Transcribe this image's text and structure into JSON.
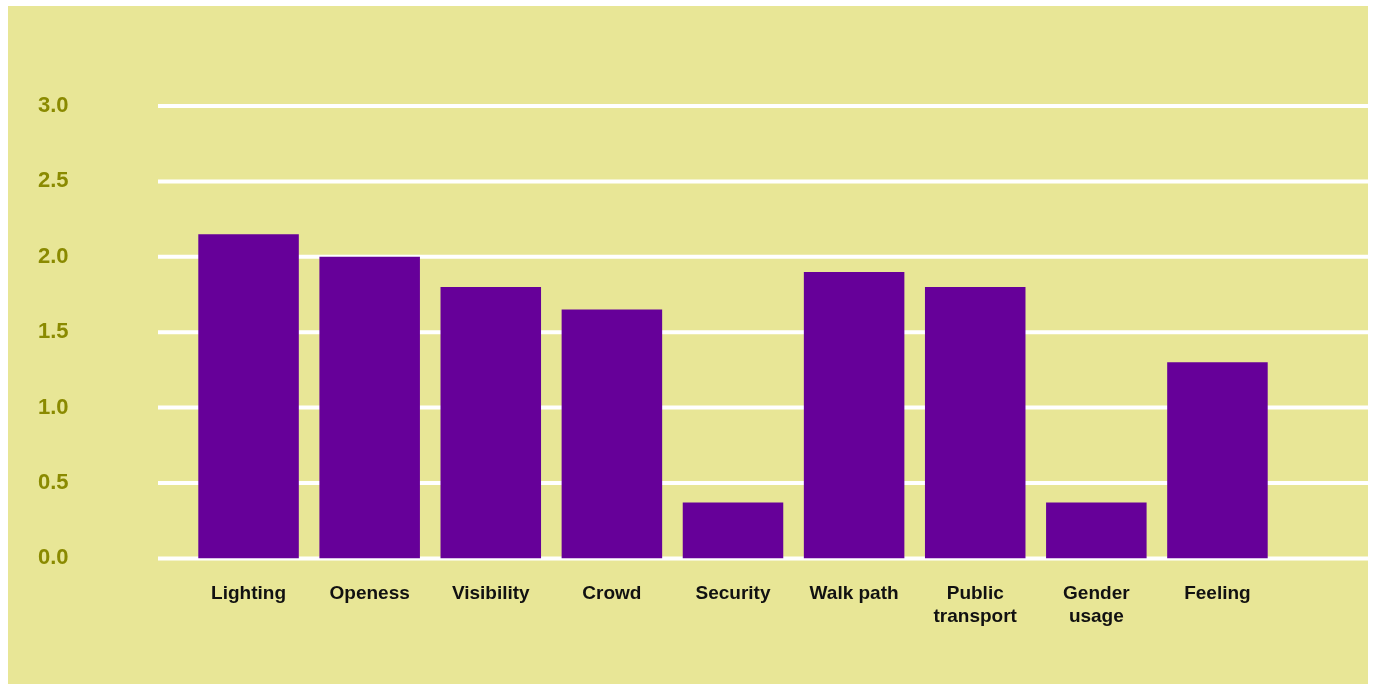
{
  "chart_data": {
    "type": "bar",
    "categories": [
      "Lighting",
      "Openess",
      "Visibility",
      "Crowd",
      "Security",
      "Walk path",
      "Public transport",
      "Gender usage",
      "Feeling"
    ],
    "values": [
      2.15,
      2.0,
      1.8,
      1.65,
      0.37,
      1.9,
      1.8,
      0.37,
      1.3
    ],
    "color": "#660099",
    "ylim": [
      0,
      3
    ],
    "yticks": [
      {
        "value": 0,
        "label": "0.0"
      },
      {
        "value": 0.5,
        "label": "0.5"
      },
      {
        "value": 1,
        "label": "1.0"
      },
      {
        "value": 1.5,
        "label": "1.5"
      },
      {
        "value": 2,
        "label": "2.0"
      },
      {
        "value": 2.5,
        "label": "2.5"
      },
      {
        "value": 3,
        "label": "3.0"
      }
    ],
    "grid": "y",
    "legend": false
  }
}
